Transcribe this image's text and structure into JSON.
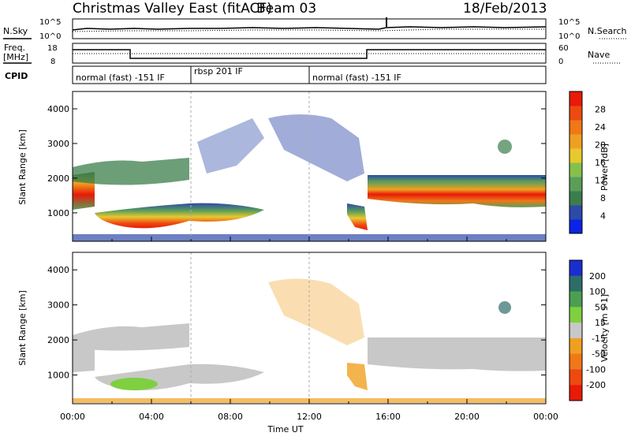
{
  "header": {
    "station": "Christmas Valley East (fitACF)",
    "beam": "Beam 03",
    "date": "18/Feb/2013"
  },
  "top_panels": {
    "nsky_label": "N.Sky",
    "nsearch_label": "N.Search",
    "freq_label_line1": "Freq.",
    "freq_label_line2": "[MHz]",
    "nave_label": "Nave",
    "cpid_label": "CPID",
    "noise_ticks_left": [
      "10^5",
      "10^0"
    ],
    "noise_ticks_right": [
      "10^5",
      "10^0"
    ],
    "freq_ticks_left": [
      "18",
      "8"
    ],
    "nave_ticks_right": [
      "60",
      "0"
    ],
    "cpid_segments": [
      {
        "text": "normal (fast) -151 IF",
        "start_h": 0.0
      },
      {
        "text": "rbsp 201 IF",
        "start_h": 6.0
      },
      {
        "text": "normal (fast) -151 IF",
        "start_h": 12.0
      }
    ]
  },
  "chart_data": [
    {
      "type": "heatmap",
      "name": "power",
      "xlabel": "Time UT",
      "ylabel": "Slant Range [km]",
      "xlim": [
        0,
        24
      ],
      "ylim": [
        180,
        4500
      ],
      "yticks": [
        1000,
        2000,
        3000,
        4000
      ],
      "colorbar": {
        "label": "Power [dB]",
        "ticks": [
          4,
          8,
          12,
          16,
          20,
          24,
          28
        ],
        "colors": [
          "#0a23e6",
          "#2e4aa8",
          "#3b7e4b",
          "#5a9e5a",
          "#86c04c",
          "#e8c830",
          "#f0a020",
          "#f07818",
          "#ee4a10",
          "#e81a08"
        ]
      },
      "regions": [
        {
          "label": "band-west",
          "t": [
            0.0,
            1.2
          ],
          "r": [
            1300,
            2000
          ],
          "level": 24
        },
        {
          "label": "band-upper",
          "t": [
            0.0,
            4.8
          ],
          "r": [
            1800,
            2300
          ],
          "level": 10
        },
        {
          "label": "ground-scatter-morning",
          "t": [
            1.2,
            9.5
          ],
          "r": [
            600,
            1200
          ],
          "level": 20
        },
        {
          "label": "band-east",
          "t": [
            15.2,
            24.0
          ],
          "r": [
            1100,
            2000
          ],
          "level": 22
        },
        {
          "label": "patch-near-noon",
          "t": [
            14.0,
            15.2
          ],
          "r": [
            700,
            1400
          ],
          "level": 18
        }
      ]
    },
    {
      "type": "heatmap",
      "name": "velocity",
      "xlabel": "Time UT",
      "ylabel": "Slant Range [km]",
      "xlim": [
        0,
        24
      ],
      "ylim": [
        180,
        4500
      ],
      "yticks": [
        1000,
        2000,
        3000,
        4000
      ],
      "xticks": [
        "00:00",
        "04:00",
        "08:00",
        "12:00",
        "16:00",
        "20:00",
        "00:00"
      ],
      "colorbar": {
        "label": "Velocity [m s-1]",
        "ticks": [
          200,
          100,
          50,
          15,
          -15,
          -50,
          -100,
          -200
        ],
        "colors": [
          "#1a2ed0",
          "#2e6e68",
          "#4aa050",
          "#7ed040",
          "#c8c8c8",
          "#f0a020",
          "#f07818",
          "#ee4a10",
          "#e81a08"
        ]
      }
    }
  ]
}
